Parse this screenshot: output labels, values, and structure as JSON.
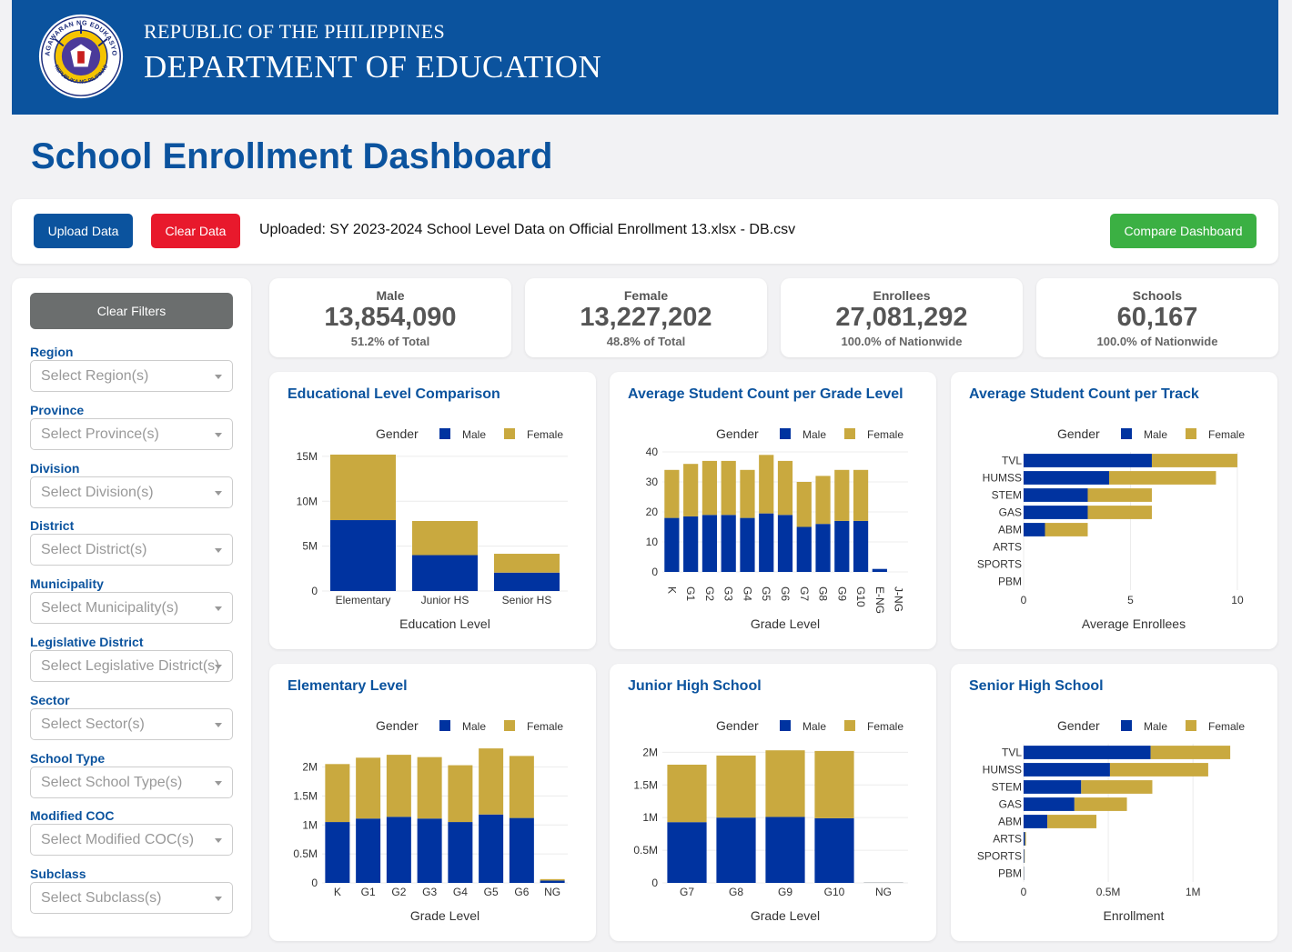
{
  "header": {
    "subtitle": "REPUBLIC OF THE PHILIPPINES",
    "title": "DEPARTMENT OF EDUCATION",
    "seal_top_text": "KAGAWARAN NG EDUKASYON",
    "seal_bottom_text": "REPUBLIKA NG PILIPINAS"
  },
  "page_title": "School Enrollment Dashboard",
  "toolbar": {
    "upload_label": "Upload Data",
    "clear_label": "Clear Data",
    "uploaded_text": "Uploaded: SY 2023-2024 School Level Data on Official Enrollment 13.xlsx - DB.csv",
    "compare_label": "Compare Dashboard"
  },
  "sidebar": {
    "clear_filters_label": "Clear Filters",
    "filters": [
      {
        "label": "Region",
        "placeholder": "Select Region(s)"
      },
      {
        "label": "Province",
        "placeholder": "Select Province(s)"
      },
      {
        "label": "Division",
        "placeholder": "Select Division(s)"
      },
      {
        "label": "District",
        "placeholder": "Select District(s)"
      },
      {
        "label": "Municipality",
        "placeholder": "Select Municipality(s)"
      },
      {
        "label": "Legislative District",
        "placeholder": "Select Legislative District(s)"
      },
      {
        "label": "Sector",
        "placeholder": "Select Sector(s)"
      },
      {
        "label": "School Type",
        "placeholder": "Select School Type(s)"
      },
      {
        "label": "Modified COC",
        "placeholder": "Select Modified COC(s)"
      },
      {
        "label": "Subclass",
        "placeholder": "Select Subclass(s)"
      }
    ]
  },
  "kpis": [
    {
      "label": "Male",
      "value": "13,854,090",
      "pct": "51.2% of Total"
    },
    {
      "label": "Female",
      "value": "13,227,202",
      "pct": "48.8% of Total"
    },
    {
      "label": "Enrollees",
      "value": "27,081,292",
      "pct": "100.0% of Nationwide"
    },
    {
      "label": "Schools",
      "value": "60,167",
      "pct": "100.0% of Nationwide"
    }
  ],
  "colors": {
    "male": "#0033a0",
    "female": "#c9a93f",
    "accent": "#0b539e"
  },
  "chart_data": [
    {
      "type": "bar",
      "stacked": true,
      "orientation": "vertical",
      "title": "Educational Level Comparison",
      "legend_title": "Gender",
      "xlabel": "Education Level",
      "ylabel": "",
      "categories": [
        "Elementary",
        "Junior HS",
        "Senior HS"
      ],
      "ylim": [
        0,
        15500000
      ],
      "yticks": [
        0,
        5000000,
        10000000,
        15000000
      ],
      "ytick_labels": [
        "0",
        "5M",
        "10M",
        "15M"
      ],
      "rotate_x": false,
      "series": [
        {
          "name": "Male",
          "values": [
            7900000,
            4000000,
            2050000
          ]
        },
        {
          "name": "Female",
          "values": [
            7300000,
            3800000,
            2100000
          ]
        }
      ]
    },
    {
      "type": "bar",
      "stacked": true,
      "orientation": "vertical",
      "title": "Average Student Count per Grade Level",
      "legend_title": "Gender",
      "xlabel": "Grade Level",
      "ylabel": "",
      "categories": [
        "K",
        "G1",
        "G2",
        "G3",
        "G4",
        "G5",
        "G6",
        "G7",
        "G8",
        "G9",
        "G10",
        "E-NG",
        "J-NG"
      ],
      "ylim": [
        0,
        40
      ],
      "yticks": [
        0,
        10,
        20,
        30,
        40
      ],
      "ytick_labels": [
        "0",
        "10",
        "20",
        "30",
        "40"
      ],
      "rotate_x": true,
      "series": [
        {
          "name": "Male",
          "values": [
            18,
            18.5,
            19,
            19,
            18,
            19.5,
            19,
            15,
            16,
            17,
            17,
            1,
            0
          ]
        },
        {
          "name": "Female",
          "values": [
            16,
            17.5,
            18,
            18,
            16,
            19.5,
            18,
            15,
            16,
            17,
            17,
            0,
            0
          ]
        }
      ]
    },
    {
      "type": "bar",
      "stacked": true,
      "orientation": "horizontal",
      "title": "Average Student Count per Track",
      "legend_title": "Gender",
      "xlabel": "Average Enrollees",
      "ylabel": "",
      "categories": [
        "TVL",
        "HUMSS",
        "STEM",
        "GAS",
        "ABM",
        "ARTS",
        "SPORTS",
        "PBM"
      ],
      "xlim": [
        0,
        10.3
      ],
      "xticks": [
        0,
        5,
        10
      ],
      "xtick_labels": [
        "0",
        "5",
        "10"
      ],
      "series": [
        {
          "name": "Male",
          "values": [
            6,
            4,
            3,
            3,
            1,
            0,
            0,
            0
          ]
        },
        {
          "name": "Female",
          "values": [
            4,
            5,
            3,
            3,
            2,
            0,
            0,
            0
          ]
        }
      ]
    },
    {
      "type": "bar",
      "stacked": true,
      "orientation": "vertical",
      "title": "Elementary Level",
      "legend_title": "Gender",
      "xlabel": "Grade Level",
      "ylabel": "",
      "categories": [
        "K",
        "G1",
        "G2",
        "G3",
        "G4",
        "G5",
        "G6",
        "NG"
      ],
      "ylim": [
        0,
        2400000
      ],
      "yticks": [
        0,
        500000,
        1000000,
        1500000,
        2000000
      ],
      "ytick_labels": [
        "0",
        "0.5M",
        "1M",
        "1.5M",
        "2M"
      ],
      "rotate_x": false,
      "series": [
        {
          "name": "Male",
          "values": [
            1050000,
            1110000,
            1140000,
            1110000,
            1050000,
            1180000,
            1120000,
            40000
          ]
        },
        {
          "name": "Female",
          "values": [
            1000000,
            1050000,
            1070000,
            1060000,
            980000,
            1140000,
            1070000,
            25000
          ]
        }
      ]
    },
    {
      "type": "bar",
      "stacked": true,
      "orientation": "vertical",
      "title": "Junior High School",
      "legend_title": "Gender",
      "xlabel": "Grade Level",
      "ylabel": "",
      "categories": [
        "G7",
        "G8",
        "G9",
        "G10",
        "NG"
      ],
      "ylim": [
        0,
        2130000
      ],
      "yticks": [
        0,
        500000,
        1000000,
        1500000,
        2000000
      ],
      "ytick_labels": [
        "0",
        "0.5M",
        "1M",
        "1.5M",
        "2M"
      ],
      "rotate_x": false,
      "series": [
        {
          "name": "Male",
          "values": [
            930000,
            1000000,
            1010000,
            990000,
            3000
          ]
        },
        {
          "name": "Female",
          "values": [
            880000,
            950000,
            1020000,
            1030000,
            2000
          ]
        }
      ]
    },
    {
      "type": "bar",
      "stacked": true,
      "orientation": "horizontal",
      "title": "Senior High School",
      "legend_title": "Gender",
      "xlabel": "Enrollment",
      "ylabel": "",
      "categories": [
        "TVL",
        "HUMSS",
        "STEM",
        "GAS",
        "ABM",
        "ARTS",
        "SPORTS",
        "PBM"
      ],
      "xlim": [
        0,
        1300000
      ],
      "xticks": [
        0,
        500000,
        1000000
      ],
      "xtick_labels": [
        "0",
        "0.5M",
        "1M"
      ],
      "series": [
        {
          "name": "Male",
          "values": [
            750000,
            510000,
            340000,
            300000,
            140000,
            8000,
            4000,
            2000
          ]
        },
        {
          "name": "Female",
          "values": [
            470000,
            580000,
            420000,
            310000,
            290000,
            6000,
            3000,
            1000
          ]
        }
      ]
    }
  ]
}
